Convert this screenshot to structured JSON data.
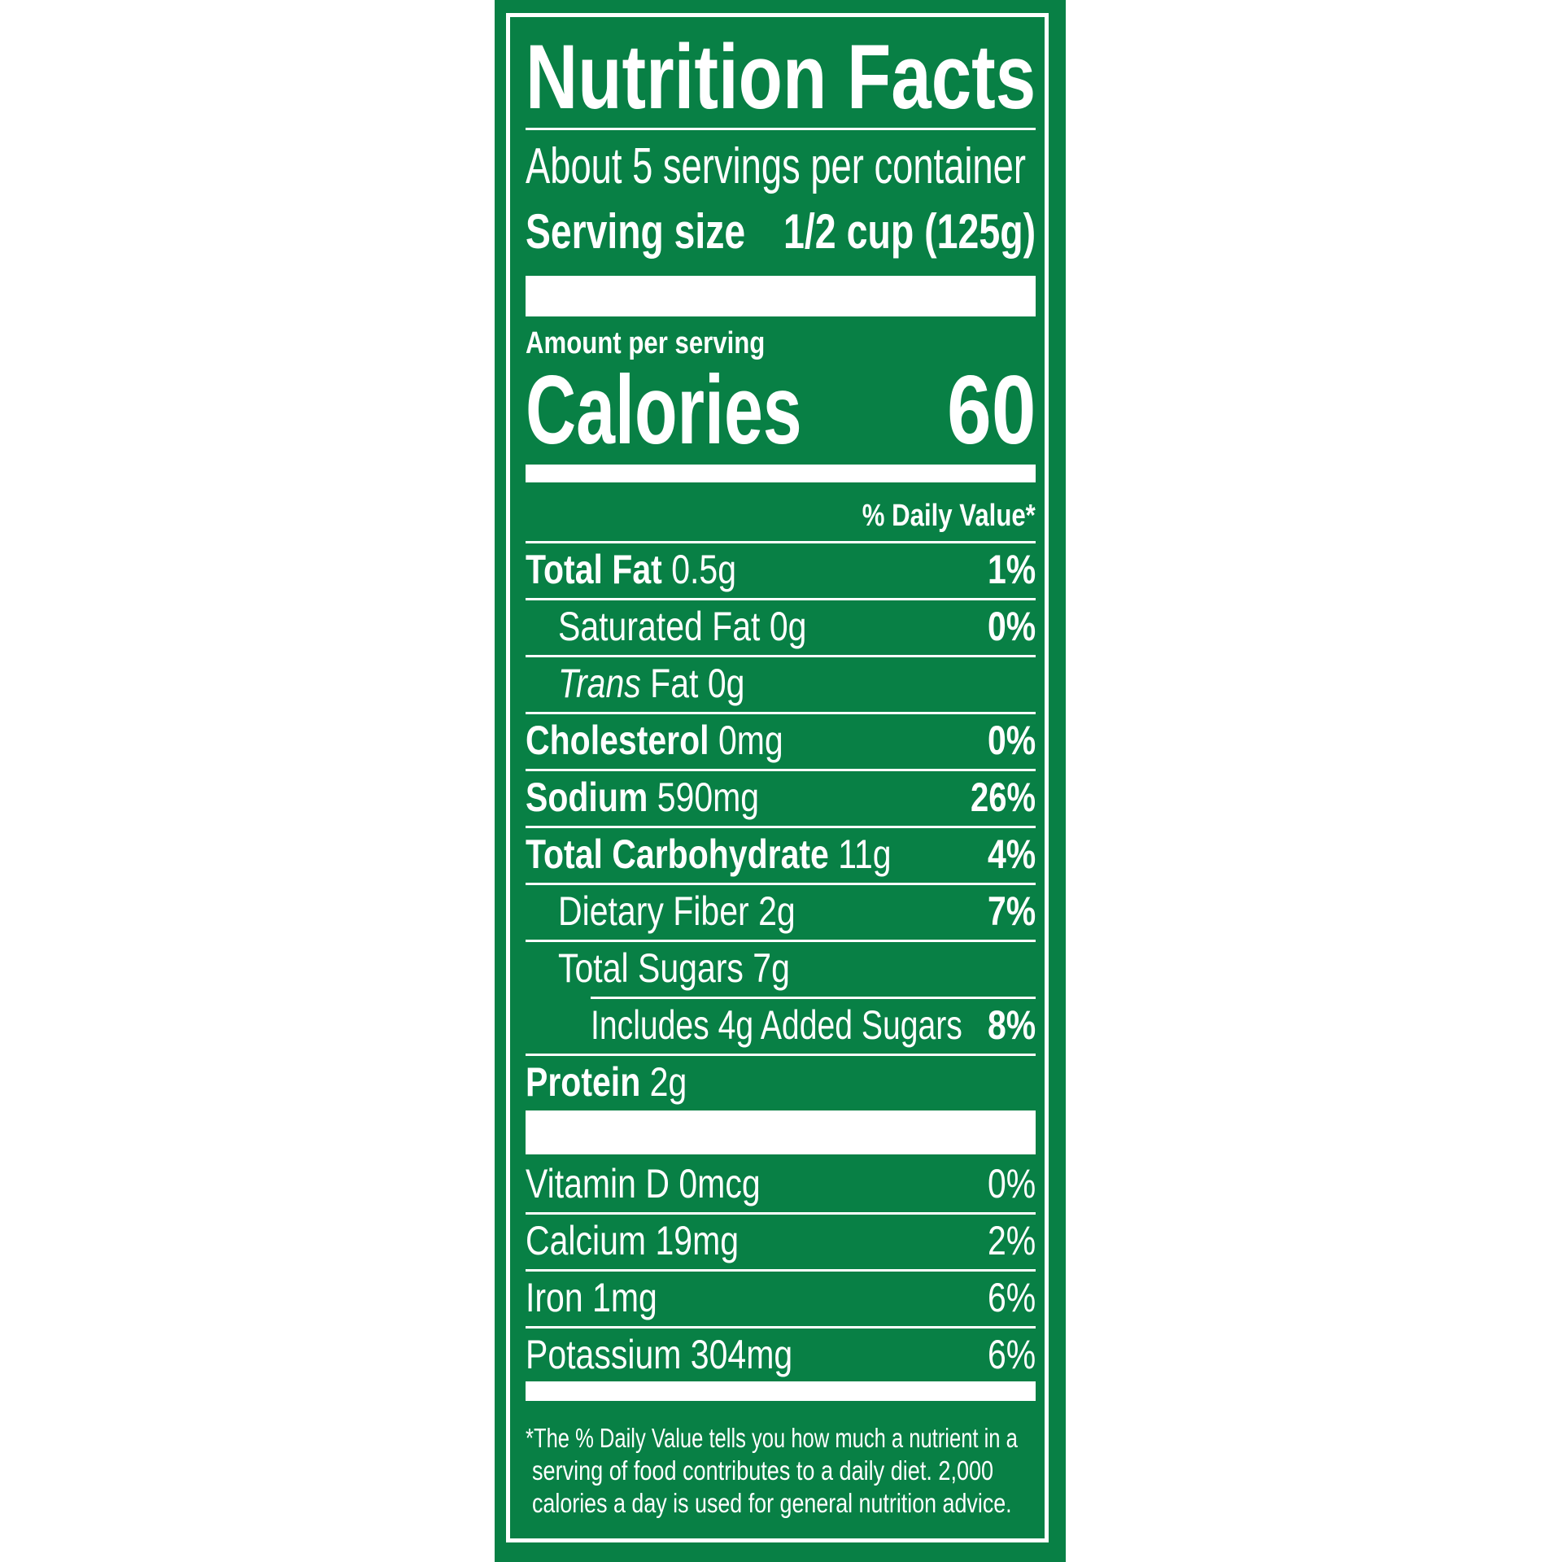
{
  "title": "Nutrition Facts",
  "servings_per_container": "About 5 servings per container",
  "serving_size": {
    "label": "Serving size",
    "value": "1/2 cup (125g)"
  },
  "amount_per_serving": "Amount per serving",
  "calories": {
    "label": "Calories",
    "value": "60"
  },
  "daily_value_header": "% Daily Value*",
  "nutrients": [
    {
      "name": "Total Fat",
      "amount": "0.5g",
      "dv": "1%"
    },
    {
      "name": "Saturated Fat",
      "amount": "0g",
      "dv": "0%"
    },
    {
      "name": "Trans",
      "name_rest": "Fat",
      "amount": "0g",
      "dv": ""
    },
    {
      "name": "Cholesterol",
      "amount": "0mg",
      "dv": "0%"
    },
    {
      "name": "Sodium",
      "amount": "590mg",
      "dv": "26%"
    },
    {
      "name": "Total Carbohydrate",
      "amount": "11g",
      "dv": "4%"
    },
    {
      "name": "Dietary Fiber",
      "amount": "2g",
      "dv": "7%"
    },
    {
      "name": "Total Sugars",
      "amount": "7g",
      "dv": ""
    },
    {
      "name": "Includes 4g Added Sugars",
      "amount": "",
      "dv": "8%"
    },
    {
      "name": "Protein",
      "amount": "2g",
      "dv": ""
    }
  ],
  "vitamins": [
    {
      "text": "Vitamin D 0mcg",
      "dv": "0%"
    },
    {
      "text": "Calcium 19mg",
      "dv": "2%"
    },
    {
      "text": "Iron 1mg",
      "dv": "6%"
    },
    {
      "text": "Potassium 304mg",
      "dv": "6%"
    }
  ],
  "footnote": [
    "*The % Daily Value tells you how much a nutrient in a",
    "serving of food contributes to a daily diet. 2,000",
    "calories a day is used for general nutrition advice."
  ],
  "colors": {
    "background": "#088045",
    "text": "#ffffff"
  }
}
